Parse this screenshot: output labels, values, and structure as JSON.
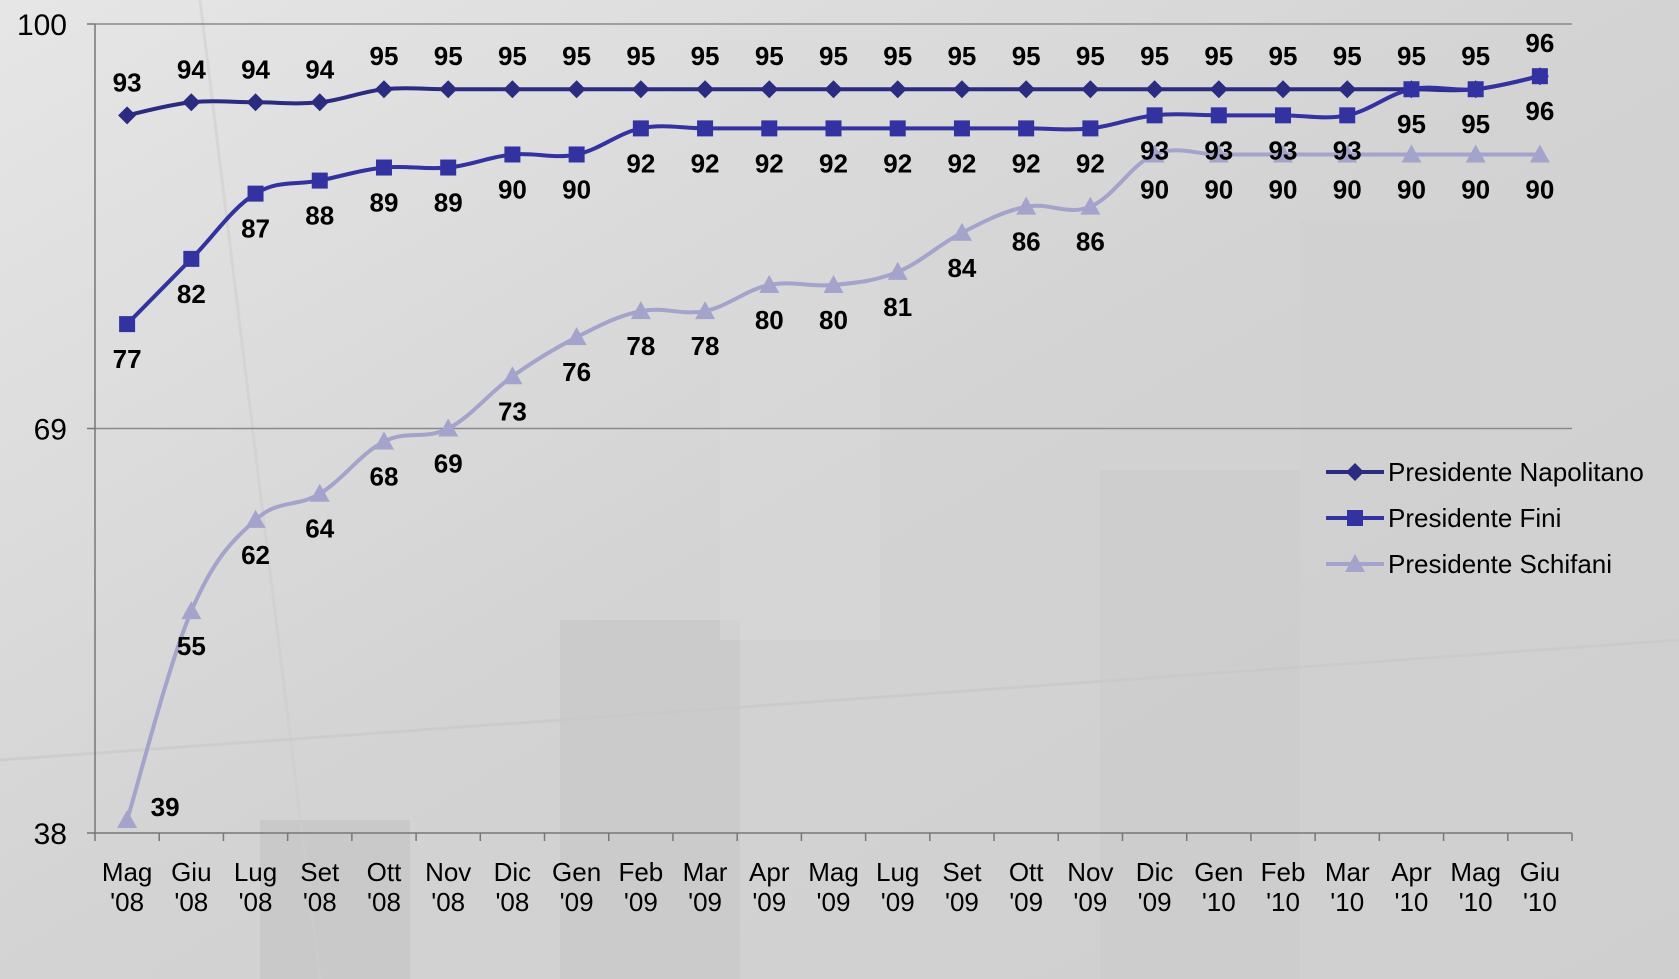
{
  "chart_data": {
    "type": "line",
    "title": "",
    "xlabel": "",
    "ylabel": "",
    "ylim": [
      38,
      100
    ],
    "yticks": [
      "100",
      "69",
      "38"
    ],
    "categories": [
      [
        "Mag",
        "'08"
      ],
      [
        "Giu",
        "'08"
      ],
      [
        "Lug",
        "'08"
      ],
      [
        "Set",
        "'08"
      ],
      [
        "Ott",
        "'08"
      ],
      [
        "Nov",
        "'08"
      ],
      [
        "Dic",
        "'08"
      ],
      [
        "Gen",
        "'09"
      ],
      [
        "Feb",
        "'09"
      ],
      [
        "Mar",
        "'09"
      ],
      [
        "Apr",
        "'09"
      ],
      [
        "Mag",
        "'09"
      ],
      [
        "Lug",
        "'09"
      ],
      [
        "Set",
        "'09"
      ],
      [
        "Ott",
        "'09"
      ],
      [
        "Nov",
        "'09"
      ],
      [
        "Dic",
        "'09"
      ],
      [
        "Gen",
        "'10"
      ],
      [
        "Feb",
        "'10"
      ],
      [
        "Mar",
        "'10"
      ],
      [
        "Apr",
        "'10"
      ],
      [
        "Mag",
        "'10"
      ],
      [
        "Giu",
        "'10"
      ]
    ],
    "legend_position": "right",
    "grid": "horizontal",
    "series": [
      {
        "name": "Presidente Napolitano",
        "color": "#2b2b80",
        "marker": "diamond",
        "values": [
          93,
          94,
          94,
          94,
          95,
          95,
          95,
          95,
          95,
          95,
          95,
          95,
          95,
          95,
          95,
          95,
          95,
          95,
          95,
          95,
          95,
          95,
          96
        ]
      },
      {
        "name": "Presidente Fini",
        "color": "#3232a0",
        "marker": "square",
        "values": [
          77,
          82,
          87,
          88,
          89,
          89,
          90,
          90,
          92,
          92,
          92,
          92,
          92,
          92,
          92,
          92,
          93,
          93,
          93,
          93,
          95,
          95,
          96
        ]
      },
      {
        "name": "Presidente Schifani",
        "color": "#a3a3cc",
        "marker": "triangle",
        "values": [
          39,
          55,
          62,
          64,
          68,
          69,
          73,
          76,
          78,
          78,
          80,
          80,
          81,
          84,
          86,
          86,
          90,
          90,
          90,
          90,
          90,
          90,
          90
        ]
      }
    ]
  }
}
